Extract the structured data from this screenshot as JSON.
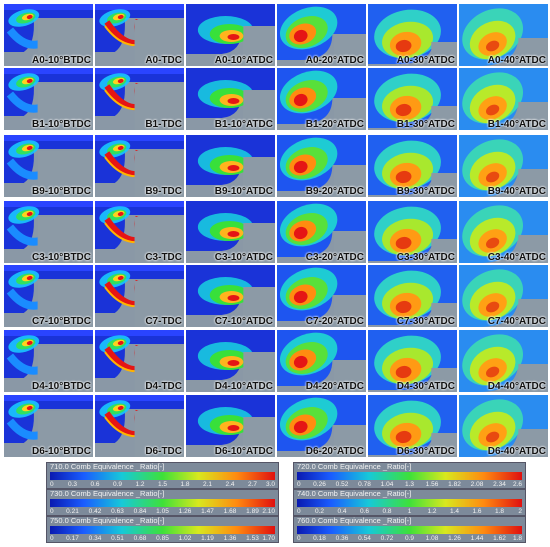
{
  "panels": {
    "rows": [
      {
        "case": "A0",
        "labels": [
          "A0-10°BTDC",
          "A0-TDC",
          "A0-10°ATDC",
          "A0-20°ATDC",
          "A0-30°ATDC",
          "A0-40°ATDC"
        ]
      },
      {
        "case": "B1",
        "labels": [
          "B1-10°BTDC",
          "B1-TDC",
          "B1-10°ATDC",
          "B1-20°ATDC",
          "B1-30°ATDC",
          "B1-40°ATDC"
        ]
      },
      {
        "case": "B9",
        "labels": [
          "B9-10°BTDC",
          "B9-TDC",
          "B9-10°ATDC",
          "B9-20°ATDC",
          "B9-30°ATDC",
          "B9-40°ATDC"
        ]
      },
      {
        "case": "C3",
        "labels": [
          "C3-10°BTDC",
          "C3-TDC",
          "C3-10°ATDC",
          "C3-20°ATDC",
          "C3-30°ATDC",
          "C3-40°ATDC"
        ]
      },
      {
        "case": "C7",
        "labels": [
          "C7-10°BTDC",
          "C7-TDC",
          "C7-10°ATDC",
          "C7-20°ATDC",
          "C7-30°ATDC",
          "C7-40°ATDC"
        ]
      },
      {
        "case": "D4",
        "labels": [
          "D4-10°BTDC",
          "D4-TDC",
          "D4-10°ATDC",
          "D4-20°ATDC",
          "D4-30°ATDC",
          "D4-40°ATDC"
        ]
      },
      {
        "case": "D6",
        "labels": [
          "D6-10°BTDC",
          "D6-TDC",
          "D6-10°ATDC",
          "D6-20°ATDC",
          "D6-30°ATDC",
          "D6-40°ATDC"
        ]
      }
    ]
  },
  "legend": [
    {
      "title": "710.0 Comb Equivalence _Ratio[-]",
      "ticks": [
        "0",
        "0.3",
        "0.6",
        "0.9",
        "1.2",
        "1.5",
        "1.8",
        "2.1",
        "2.4",
        "2.7",
        "3.0"
      ]
    },
    {
      "title": "720.0 Comb Equivalence _Ratio[-]",
      "ticks": [
        "0",
        "0.26",
        "0.52",
        "0.78",
        "1.04",
        "1.3",
        "1.56",
        "1.82",
        "2.08",
        "2.34",
        "2.6"
      ]
    },
    {
      "title": "730.0 Comb Equivalence _Ratio[-]",
      "ticks": [
        "0",
        "0.21",
        "0.42",
        "0.63",
        "0.84",
        "1.05",
        "1.26",
        "1.47",
        "1.68",
        "1.89",
        "2.10"
      ]
    },
    {
      "title": "740.0 Comb Equivalence _Ratio[-]",
      "ticks": [
        "0",
        "0.2",
        "0.4",
        "0.6",
        "0.8",
        "1",
        "1.2",
        "1.4",
        "1.6",
        "1.8",
        "2"
      ]
    },
    {
      "title": "750.0 Comb Equivalence _Ratio[-]",
      "ticks": [
        "0",
        "0.17",
        "0.34",
        "0.51",
        "0.68",
        "0.85",
        "1.02",
        "1.19",
        "1.36",
        "1.53",
        "1.70"
      ]
    },
    {
      "title": "760.0 Comb Equivalence _Ratio[-]",
      "ticks": [
        "0",
        "0.18",
        "0.36",
        "0.54",
        "0.72",
        "0.9",
        "1.08",
        "1.26",
        "1.44",
        "1.62",
        "1.8"
      ]
    }
  ],
  "colors": {
    "background": "#8a98a6",
    "piston": "#909ea9",
    "lean": "#1428e0",
    "rich": "#e31212"
  }
}
